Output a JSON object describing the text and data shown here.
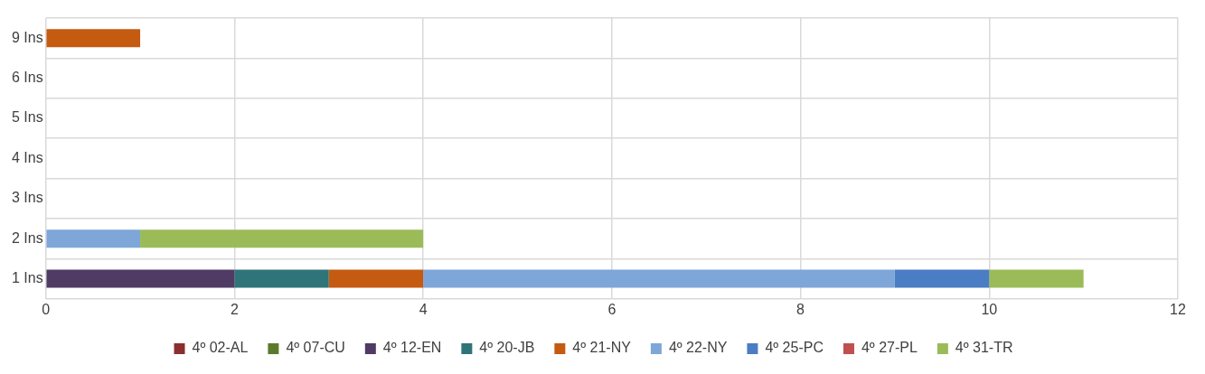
{
  "chart_data": {
    "type": "bar",
    "orientation": "horizontal",
    "stacked": true,
    "categories": [
      "9 Ins",
      "6 Ins",
      "5 Ins",
      "4 Ins",
      "3 Ins",
      "2 Ins",
      "1 Ins"
    ],
    "series": [
      {
        "name": "4º 02-AL",
        "color": "#8b2f2f",
        "values": [
          0,
          0,
          0,
          0,
          0,
          0,
          0
        ]
      },
      {
        "name": "4º 07-CU",
        "color": "#5b7a2c",
        "values": [
          0,
          0,
          0,
          0,
          0,
          0,
          0
        ]
      },
      {
        "name": "4º 12-EN",
        "color": "#4f3b63",
        "values": [
          0,
          0,
          0,
          0,
          0,
          0,
          2
        ]
      },
      {
        "name": "4º 20-JB",
        "color": "#2e7478",
        "values": [
          0,
          0,
          0,
          0,
          0,
          0,
          1
        ]
      },
      {
        "name": "4º 21-NY",
        "color": "#c55a11",
        "values": [
          1,
          0,
          0,
          0,
          0,
          0,
          1
        ]
      },
      {
        "name": "4º 22-NY",
        "color": "#7ea6d8",
        "values": [
          0,
          0,
          0,
          0,
          0,
          1,
          5
        ]
      },
      {
        "name": "4º 25-PC",
        "color": "#4a7dc4",
        "values": [
          0,
          0,
          0,
          0,
          0,
          0,
          1
        ]
      },
      {
        "name": "4º 27-PL",
        "color": "#c0504d",
        "values": [
          0,
          0,
          0,
          0,
          0,
          0,
          0
        ]
      },
      {
        "name": "4º 31-TR",
        "color": "#9bbb59",
        "values": [
          0,
          0,
          0,
          0,
          0,
          3,
          1
        ]
      }
    ],
    "xlim": [
      0,
      12
    ],
    "xticks": [
      0,
      2,
      4,
      6,
      8,
      10,
      12
    ],
    "grid": true,
    "legend": "bottom"
  }
}
